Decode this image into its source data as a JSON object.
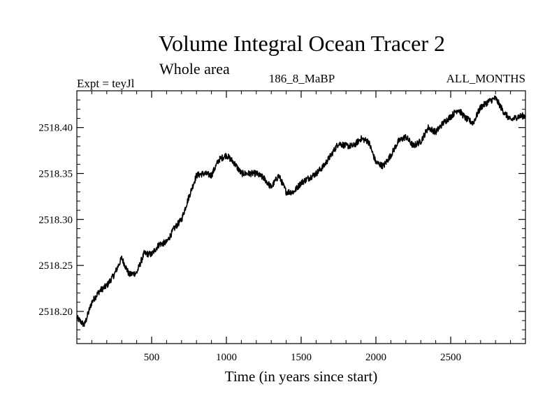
{
  "chart_data": {
    "type": "line",
    "title": "Volume Integral Ocean Tracer 2",
    "subtitle": "Whole area",
    "left_header": "Expt = teyJl",
    "center_header": "186_8_MaBP",
    "right_header": "ALL_MONTHS",
    "xlabel": "Time (in years since start)",
    "ylabel": "",
    "xlim": [
      0,
      3000
    ],
    "ylim": [
      2518.165,
      2518.44
    ],
    "x_ticks": [
      500,
      1000,
      1500,
      2000,
      2500
    ],
    "y_ticks": [
      2518.2,
      2518.25,
      2518.3,
      2518.35,
      2518.4
    ],
    "x_tick_labels": [
      "500",
      "1000",
      "1500",
      "2000",
      "2500"
    ],
    "y_tick_labels": [
      "2518.20",
      "2518.25",
      "2518.30",
      "2518.35",
      "2518.40"
    ],
    "grid": false,
    "color": "#000000",
    "series": [
      {
        "name": "tracer2",
        "x": [
          0,
          50,
          100,
          150,
          200,
          250,
          300,
          350,
          400,
          450,
          500,
          550,
          600,
          650,
          700,
          750,
          800,
          850,
          900,
          950,
          1000,
          1050,
          1100,
          1150,
          1200,
          1250,
          1300,
          1350,
          1400,
          1450,
          1500,
          1550,
          1600,
          1650,
          1700,
          1750,
          1800,
          1850,
          1900,
          1950,
          2000,
          2050,
          2100,
          2150,
          2200,
          2250,
          2300,
          2350,
          2400,
          2450,
          2500,
          2550,
          2600,
          2650,
          2700,
          2750,
          2800,
          2850,
          2900,
          2950,
          3000
        ],
        "values": [
          2518.193,
          2518.185,
          2518.21,
          2518.222,
          2518.228,
          2518.24,
          2518.258,
          2518.24,
          2518.242,
          2518.263,
          2518.262,
          2518.273,
          2518.275,
          2518.29,
          2518.3,
          2518.325,
          2518.348,
          2518.35,
          2518.348,
          2518.365,
          2518.37,
          2518.362,
          2518.35,
          2518.35,
          2518.35,
          2518.345,
          2518.335,
          2518.348,
          2518.33,
          2518.33,
          2518.34,
          2518.345,
          2518.35,
          2518.358,
          2518.37,
          2518.383,
          2518.38,
          2518.38,
          2518.388,
          2518.385,
          2518.362,
          2518.358,
          2518.37,
          2518.385,
          2518.39,
          2518.38,
          2518.385,
          2518.4,
          2518.395,
          2518.405,
          2518.412,
          2518.42,
          2518.41,
          2518.405,
          2518.422,
          2518.428,
          2518.432,
          2518.418,
          2518.408,
          2518.412,
          2518.413
        ]
      }
    ]
  }
}
